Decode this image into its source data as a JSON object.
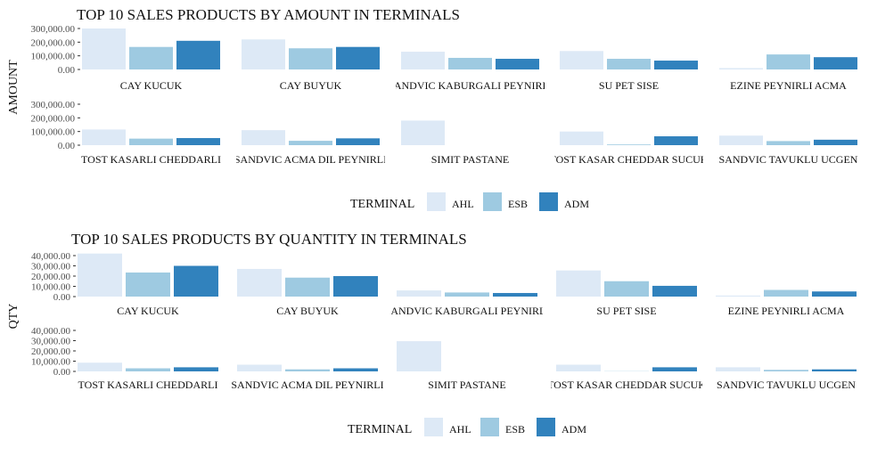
{
  "colors": {
    "AHL": "#dde9f6",
    "ESB": "#9ecae1",
    "ADM": "#3182bd",
    "axis_text": "#4d4d4d",
    "title_text": "#111111"
  },
  "chart_data": [
    {
      "type": "bar",
      "title": "TOP 10 SALES PRODUCTS BY AMOUNT IN TERMINALS",
      "xlabel": "",
      "ylabel": "AMOUNT",
      "ylim": [
        0,
        300000
      ],
      "yticks": [
        "300,000.00",
        "200,000.00",
        "100,000.00",
        "0.00"
      ],
      "grid": false,
      "legend": {
        "position": "bottom",
        "title": "TERMINAL",
        "entries": [
          "AHL",
          "ESB",
          "ADM"
        ]
      },
      "series": [
        {
          "name": "AHL",
          "values": [
            300000,
            220000,
            130000,
            135000,
            10000,
            115000,
            110000,
            180000,
            100000,
            70000
          ]
        },
        {
          "name": "ESB",
          "values": [
            165000,
            155000,
            85000,
            78000,
            110000,
            48000,
            32000,
            0,
            5000,
            30000
          ]
        },
        {
          "name": "ADM",
          "values": [
            210000,
            165000,
            78000,
            65000,
            90000,
            52000,
            50000,
            0,
            65000,
            40000
          ]
        }
      ],
      "categories": [
        "CAY KUCUK",
        "CAY BUYUK",
        "SANDVIC KABURGALI PEYNIRLI",
        "SU PET SISE",
        "EZINE PEYNIRLI ACMA",
        "TOST KASARLI CHEDDARLI",
        "SANDVIC ACMA DIL PEYNIRLI",
        "SIMIT PASTANE",
        "TOST KASAR CHEDDAR SUCUK",
        "SANDVIC TAVUKLU UCGEN"
      ]
    },
    {
      "type": "bar",
      "title": "TOP 10 SALES PRODUCTS BY QUANTITY IN TERMINALS",
      "xlabel": "",
      "ylabel": "QTY",
      "ylim": [
        0,
        40000
      ],
      "yticks": [
        "40,000.00",
        "30,000.00",
        "20,000.00",
        "10,000.00",
        "0.00"
      ],
      "grid": false,
      "legend": {
        "position": "bottom",
        "title": "TERMINAL",
        "entries": [
          "AHL",
          "ESB",
          "ADM"
        ]
      },
      "series": [
        {
          "name": "AHL",
          "values": [
            42000,
            27000,
            6000,
            25500,
            1000,
            8500,
            6500,
            29500,
            6500,
            4000
          ]
        },
        {
          "name": "ESB",
          "values": [
            23500,
            18500,
            4000,
            15000,
            6500,
            3000,
            2000,
            0,
            200,
            1500
          ]
        },
        {
          "name": "ADM",
          "values": [
            30000,
            20000,
            3500,
            10500,
            5000,
            4000,
            3000,
            0,
            4000,
            2000
          ]
        }
      ],
      "categories": [
        "CAY KUCUK",
        "CAY BUYUK",
        "SANDVIC KABURGALI PEYNIRLI",
        "SU PET SISE",
        "EZINE PEYNIRLI ACMA",
        "TOST KASARLI CHEDDARLI",
        "SANDVIC ACMA DIL PEYNIRLI",
        "SIMIT PASTANE",
        "TOST KASAR CHEDDAR SUCUK",
        "SANDVIC TAVUKLU UCGEN"
      ]
    }
  ]
}
